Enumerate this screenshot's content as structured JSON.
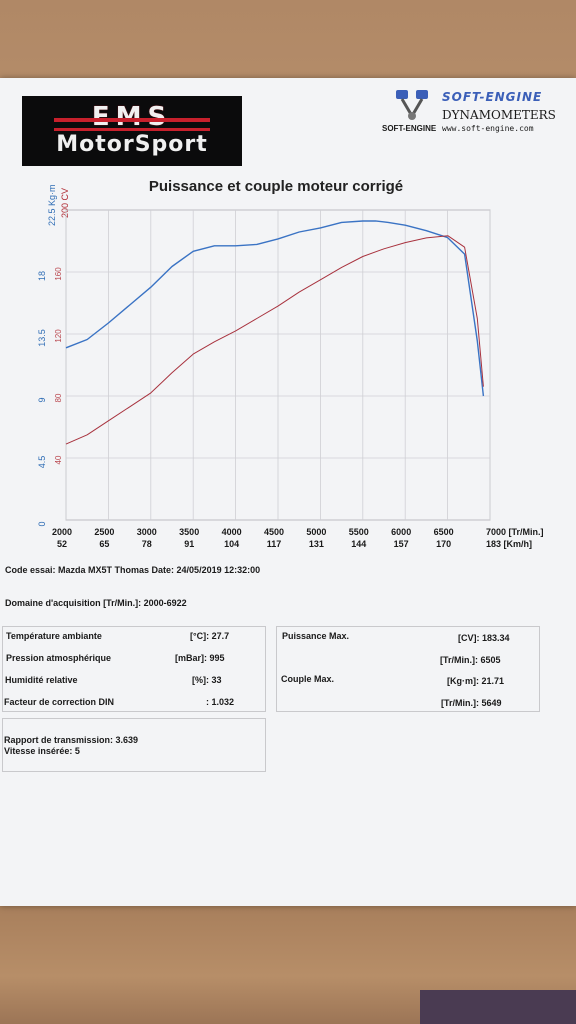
{
  "header": {
    "logo_ems": "EMS",
    "logo_motorsport": "MotorSport",
    "softengine_title": "SOFT-ENGINE",
    "softengine_dynamometers": "DYNAMOMETERS",
    "softengine_url": "www.soft-engine.com",
    "softengine_brand": "SOFT-ENGINE"
  },
  "chart_data": {
    "type": "line",
    "title": "Puissance et couple moteur corrigé",
    "y_left_label": "22.5 Kg·m",
    "y_right_label": "200 CV",
    "xlim": [
      2000,
      7000
    ],
    "ylim_kgm": [
      0,
      22.5
    ],
    "ylim_cv": [
      0,
      200
    ],
    "x_ticks": [
      2000,
      2500,
      3000,
      3500,
      4000,
      4500,
      5000,
      5500,
      6000,
      6500,
      7000
    ],
    "x_ticks_kmh": [
      "52",
      "65",
      "78",
      "91",
      "104",
      "117",
      "131",
      "144",
      "157",
      "170",
      "183 [Km/h]"
    ],
    "x_unit": "[Tr/Min.]",
    "y_ticks_kgm": [
      "0",
      "4.5",
      "9",
      "13.5",
      "18"
    ],
    "y_ticks_cv": [
      "40",
      "80",
      "120",
      "160"
    ],
    "grid": true,
    "series": [
      {
        "axis": "kgm",
        "color": "#3a73c4",
        "x": [
          2000,
          2250,
          2500,
          2750,
          3000,
          3250,
          3500,
          3750,
          4000,
          4250,
          4500,
          4750,
          5000,
          5250,
          5500,
          5649,
          5800,
          6000,
          6250,
          6500,
          6700,
          6850,
          6922
        ],
        "values": [
          12.5,
          13.1,
          14.3,
          15.6,
          16.9,
          18.4,
          19.5,
          19.9,
          19.9,
          20.0,
          20.4,
          20.9,
          21.2,
          21.6,
          21.7,
          21.71,
          21.6,
          21.4,
          21.0,
          20.5,
          19.3,
          13.0,
          9.0
        ]
      },
      {
        "axis": "cv",
        "color": "#a8323e",
        "x": [
          2000,
          2250,
          2500,
          2750,
          3000,
          3250,
          3500,
          3750,
          4000,
          4250,
          4500,
          4750,
          5000,
          5250,
          5500,
          5750,
          6000,
          6250,
          6505,
          6700,
          6850,
          6922
        ],
        "values": [
          49,
          55,
          64,
          73,
          82,
          95,
          107,
          115,
          122,
          130,
          138,
          147,
          155,
          163,
          170,
          175,
          179,
          182,
          183.34,
          176,
          130,
          86
        ]
      }
    ]
  },
  "test": {
    "code_essai": "Code essai: Mazda MX5T Thomas  Date: 24/05/2019 12:32:00",
    "domaine": "Domaine d'acquisition [Tr/Min.]: 2000-6922"
  },
  "conditions": {
    "temp_label": "Température ambiante",
    "temp_value": "[°C]: 27.7",
    "pression_label": "Pression atmosphérique",
    "pression_value": "[mBar]: 995",
    "humidite_label": "Humidité relative",
    "humidite_value": "[%]: 33",
    "facteur_label": "Facteur de correction DIN",
    "facteur_value": ": 1.032"
  },
  "results": {
    "puissance_label": "Puissance Max.",
    "puissance_value": "[CV]: 183.34",
    "puissance_rpm": "[Tr/Min.]: 6505",
    "couple_label": "Couple Max.",
    "couple_value": "[Kg·m]: 21.71",
    "couple_rpm": "[Tr/Min.]: 5649"
  },
  "transmission": {
    "rapport": "Rapport de transmission: 3.639",
    "vitesse": "Vitesse insérée: 5"
  }
}
